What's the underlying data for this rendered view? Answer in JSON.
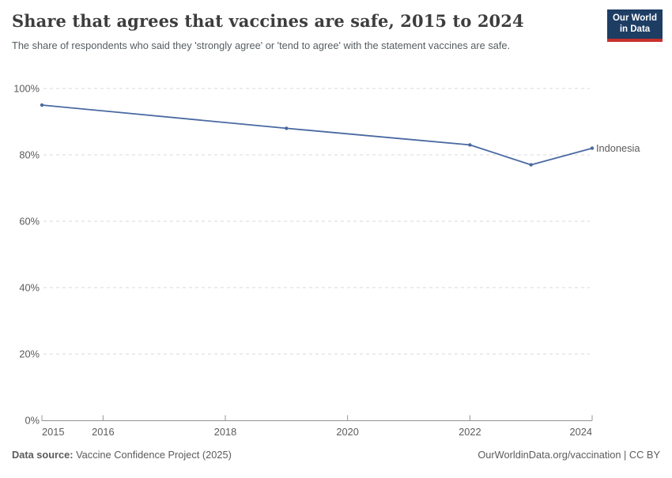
{
  "header": {
    "title": "Share that agrees that vaccines are safe, 2015 to 2024",
    "subtitle": "The share of respondents who said they 'strongly agree' or 'tend to agree' with the statement vaccines are safe.",
    "logo": {
      "line1": "Our World",
      "line2": "in Data"
    }
  },
  "chart_data": {
    "type": "line",
    "title": "Share that agrees that vaccines are safe, 2015 to 2024",
    "series": [
      {
        "name": "Indonesia",
        "color": "#4a69a2",
        "points": [
          {
            "x": 2015,
            "y": 95
          },
          {
            "x": 2019,
            "y": 88
          },
          {
            "x": 2022,
            "y": 83
          },
          {
            "x": 2023,
            "y": 77
          },
          {
            "x": 2024,
            "y": 82
          }
        ]
      }
    ],
    "xlim": [
      2015,
      2024
    ],
    "ylim": [
      0,
      100
    ],
    "x_ticks": [
      2015,
      2016,
      2018,
      2020,
      2022,
      2024
    ],
    "y_ticks": [
      0,
      20,
      40,
      60,
      80,
      100
    ],
    "y_tick_suffix": "%",
    "grid": "horizontal-dashed",
    "legend_position": "end-of-line",
    "colors": {
      "gridline": "#d9d9d9",
      "axis": "#949494",
      "tick_label": "#5b5b5b"
    }
  },
  "footer": {
    "data_source_label": "Data source:",
    "data_source_value": " Vaccine Confidence Project (2025)",
    "attribution": "OurWorldinData.org/vaccination | CC BY"
  }
}
